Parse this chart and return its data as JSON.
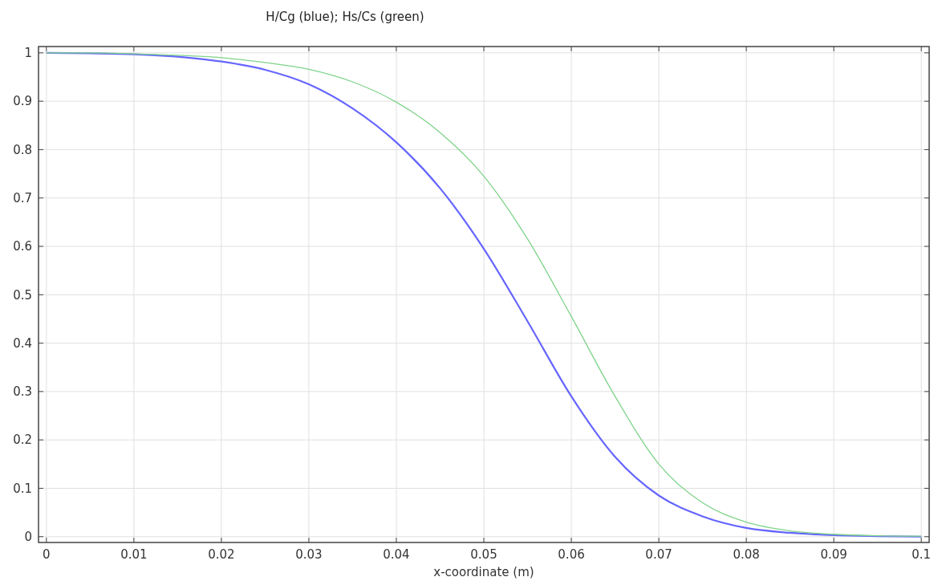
{
  "chart_data": {
    "type": "line",
    "title": "H/Cg (blue); Hs/Cs (green)",
    "xlabel": "x-coordinate (m)",
    "x": [
      0,
      0.005,
      0.01,
      0.015,
      0.02,
      0.025,
      0.03,
      0.035,
      0.04,
      0.045,
      0.05,
      0.055,
      0.06,
      0.065,
      0.07,
      0.075,
      0.08,
      0.085,
      0.09,
      0.095,
      0.1
    ],
    "series": [
      {
        "color": "#6666ff",
        "values": [
          1,
          0.999,
          0.997,
          0.992,
          0.982,
          0.965,
          0.935,
          0.885,
          0.815,
          0.72,
          0.595,
          0.445,
          0.29,
          0.165,
          0.085,
          0.042,
          0.018,
          0.008,
          0.003,
          0.001,
          0
        ]
      },
      {
        "color": "#7fd38a",
        "values": [
          1,
          1,
          0.998,
          0.995,
          0.99,
          0.98,
          0.966,
          0.94,
          0.898,
          0.835,
          0.745,
          0.615,
          0.455,
          0.29,
          0.15,
          0.07,
          0.03,
          0.012,
          0.005,
          0.002,
          0.001
        ]
      }
    ],
    "xlim": [
      -0.0009,
      0.1009
    ],
    "xticks": [
      0,
      0.01,
      0.02,
      0.03,
      0.04,
      0.05,
      0.06,
      0.07,
      0.08,
      0.09,
      0.1
    ],
    "ylim": [
      -0.012,
      1.013
    ],
    "yticks": [
      0,
      0.1,
      0.2,
      0.3,
      0.4,
      0.5,
      0.6,
      0.7,
      0.8,
      0.9,
      1
    ],
    "grid": true,
    "line_style": "solid",
    "marker": "none"
  }
}
